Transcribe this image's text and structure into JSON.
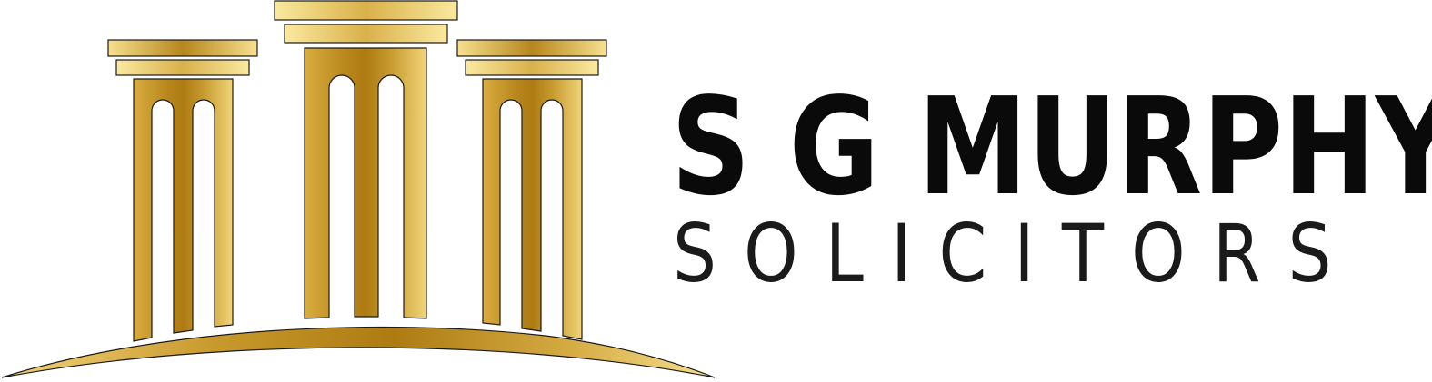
{
  "logo": {
    "name_line": "S G MURPHY",
    "type_line": "SOLICITORS",
    "emblem_icon": "greek-columns-icon",
    "colors": {
      "gold_light": "#f7e08e",
      "gold_mid": "#d9ad3f",
      "gold_dark": "#b07d14",
      "text": "#0a0a0a"
    }
  }
}
